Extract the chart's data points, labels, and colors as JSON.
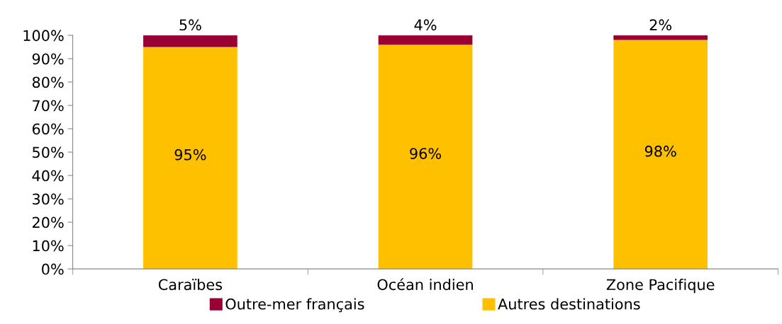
{
  "chart_data": {
    "type": "bar",
    "stacked": true,
    "categories": [
      "Caraïbes",
      "Océan indien",
      "Zone Pacifique"
    ],
    "series": [
      {
        "name": "Autres destinations",
        "color": "#ffc000",
        "values": [
          95,
          96,
          98
        ],
        "value_labels": [
          "95%",
          "96%",
          "98%"
        ]
      },
      {
        "name": "Outre-mer français",
        "color": "#990033",
        "values": [
          5,
          4,
          2
        ],
        "value_labels": [
          "5%",
          "4%",
          "2%"
        ]
      }
    ],
    "ylim": [
      0,
      100
    ],
    "yticks": [
      {
        "value": 0,
        "label": "0%"
      },
      {
        "value": 10,
        "label": "10%"
      },
      {
        "value": 20,
        "label": "20%"
      },
      {
        "value": 30,
        "label": "30%"
      },
      {
        "value": 40,
        "label": "40%"
      },
      {
        "value": 50,
        "label": "50%"
      },
      {
        "value": 60,
        "label": "60%"
      },
      {
        "value": 70,
        "label": "70%"
      },
      {
        "value": 80,
        "label": "80%"
      },
      {
        "value": 90,
        "label": "90%"
      },
      {
        "value": 100,
        "label": "100%"
      }
    ],
    "grid": false,
    "legend": "bottom"
  }
}
